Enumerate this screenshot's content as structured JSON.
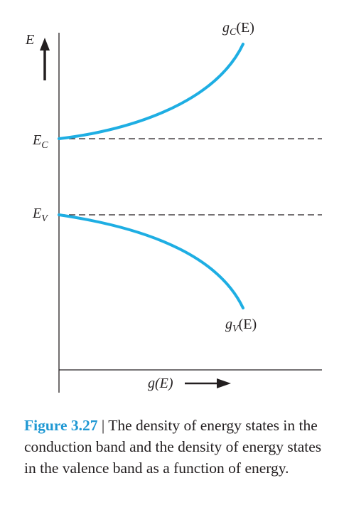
{
  "colors": {
    "curve": "#1eaee3",
    "axis": "#231f20",
    "dashed": "#231f20",
    "caption_label": "#1f98d3",
    "text": "#231f20"
  },
  "diagram": {
    "y_axis_label": "E",
    "x_axis_label": "g(E)",
    "conduction_edge_label": {
      "main": "E",
      "sub": "C"
    },
    "valence_edge_label": {
      "main": "E",
      "sub": "V"
    },
    "conduction_curve_label": {
      "g": "g",
      "sub": "C",
      "arg": "(E)"
    },
    "valence_curve_label": {
      "g": "g",
      "sub": "V",
      "arg": "(E)"
    }
  },
  "caption": {
    "label": "Figure 3.27",
    "separator": " | ",
    "text": "The density of energy states in the conduction band and the density of energy states in the valence band as a function of energy."
  }
}
